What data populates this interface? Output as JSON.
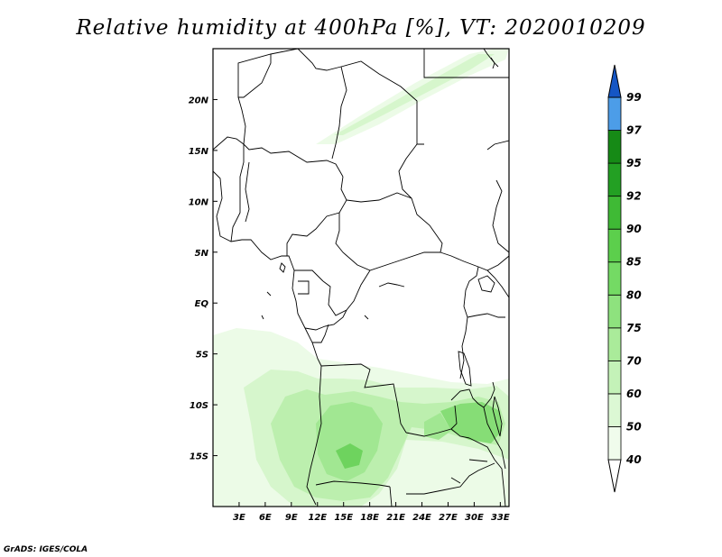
{
  "title": "Relative humidity at 400hPa [%], VT: 2020010209",
  "footer": "GrADS: IGES/COLA",
  "map": {
    "lon_range": [
      0,
      34
    ],
    "lat_range": [
      -20,
      25
    ],
    "lat_ticks": [
      {
        "value": 20,
        "label": "20N"
      },
      {
        "value": 15,
        "label": "15N"
      },
      {
        "value": 10,
        "label": "10N"
      },
      {
        "value": 5,
        "label": "5N"
      },
      {
        "value": 0,
        "label": "EQ"
      },
      {
        "value": -5,
        "label": "5S"
      },
      {
        "value": -10,
        "label": "10S"
      },
      {
        "value": -15,
        "label": "15S"
      }
    ],
    "lon_ticks": [
      {
        "value": 3,
        "label": "3E"
      },
      {
        "value": 6,
        "label": "6E"
      },
      {
        "value": 9,
        "label": "9E"
      },
      {
        "value": 12,
        "label": "12E"
      },
      {
        "value": 15,
        "label": "15E"
      },
      {
        "value": 18,
        "label": "18E"
      },
      {
        "value": 21,
        "label": "21E"
      },
      {
        "value": 24,
        "label": "24E"
      },
      {
        "value": 27,
        "label": "27E"
      },
      {
        "value": 30,
        "label": "30E"
      },
      {
        "value": 33,
        "label": "33E"
      }
    ]
  },
  "colorbar": {
    "labels": [
      "40",
      "50",
      "60",
      "70",
      "75",
      "80",
      "85",
      "90",
      "92",
      "95",
      "97",
      "99"
    ],
    "colors": [
      "#f0fcec",
      "#dcf8d4",
      "#c4f2b8",
      "#aaeb9a",
      "#8ee27e",
      "#74da64",
      "#5ccf4c",
      "#3fba35",
      "#23a023",
      "#168a16",
      "#4c9de8",
      "#2a7ae0",
      "#1556c4"
    ]
  },
  "field": {
    "colors": {
      "c1": "#ecfbe7",
      "c2": "#d6f6cc",
      "c3": "#bcefae",
      "c4": "#a1e792",
      "c5": "#86dd76",
      "c6": "#6ed35e"
    }
  }
}
